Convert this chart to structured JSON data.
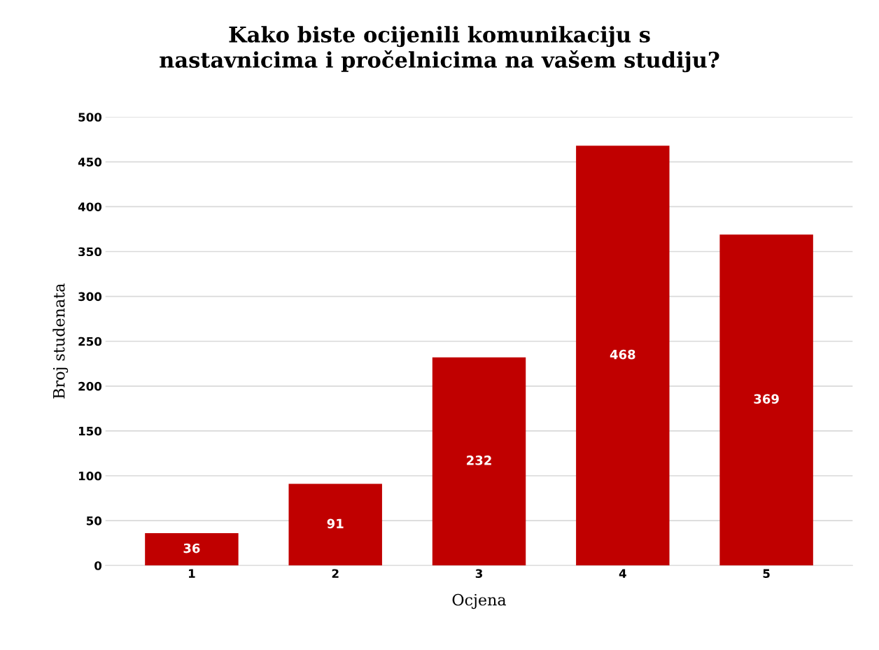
{
  "chart_data": {
    "type": "bar",
    "title": "Kako biste ocijenili komunikaciju s\nnastavnicima i pročelnicima na vašem studiju?",
    "xlabel": "Ocjena",
    "ylabel": "Broj studenata",
    "categories": [
      "1",
      "2",
      "3",
      "4",
      "5"
    ],
    "values": [
      36,
      91,
      232,
      468,
      369
    ],
    "color": "#c00000",
    "ylim": [
      0,
      500
    ],
    "yticks": [
      0,
      50,
      100,
      150,
      200,
      250,
      300,
      350,
      400,
      450,
      500
    ],
    "grid": "y",
    "data_labels": true,
    "legend": false
  }
}
